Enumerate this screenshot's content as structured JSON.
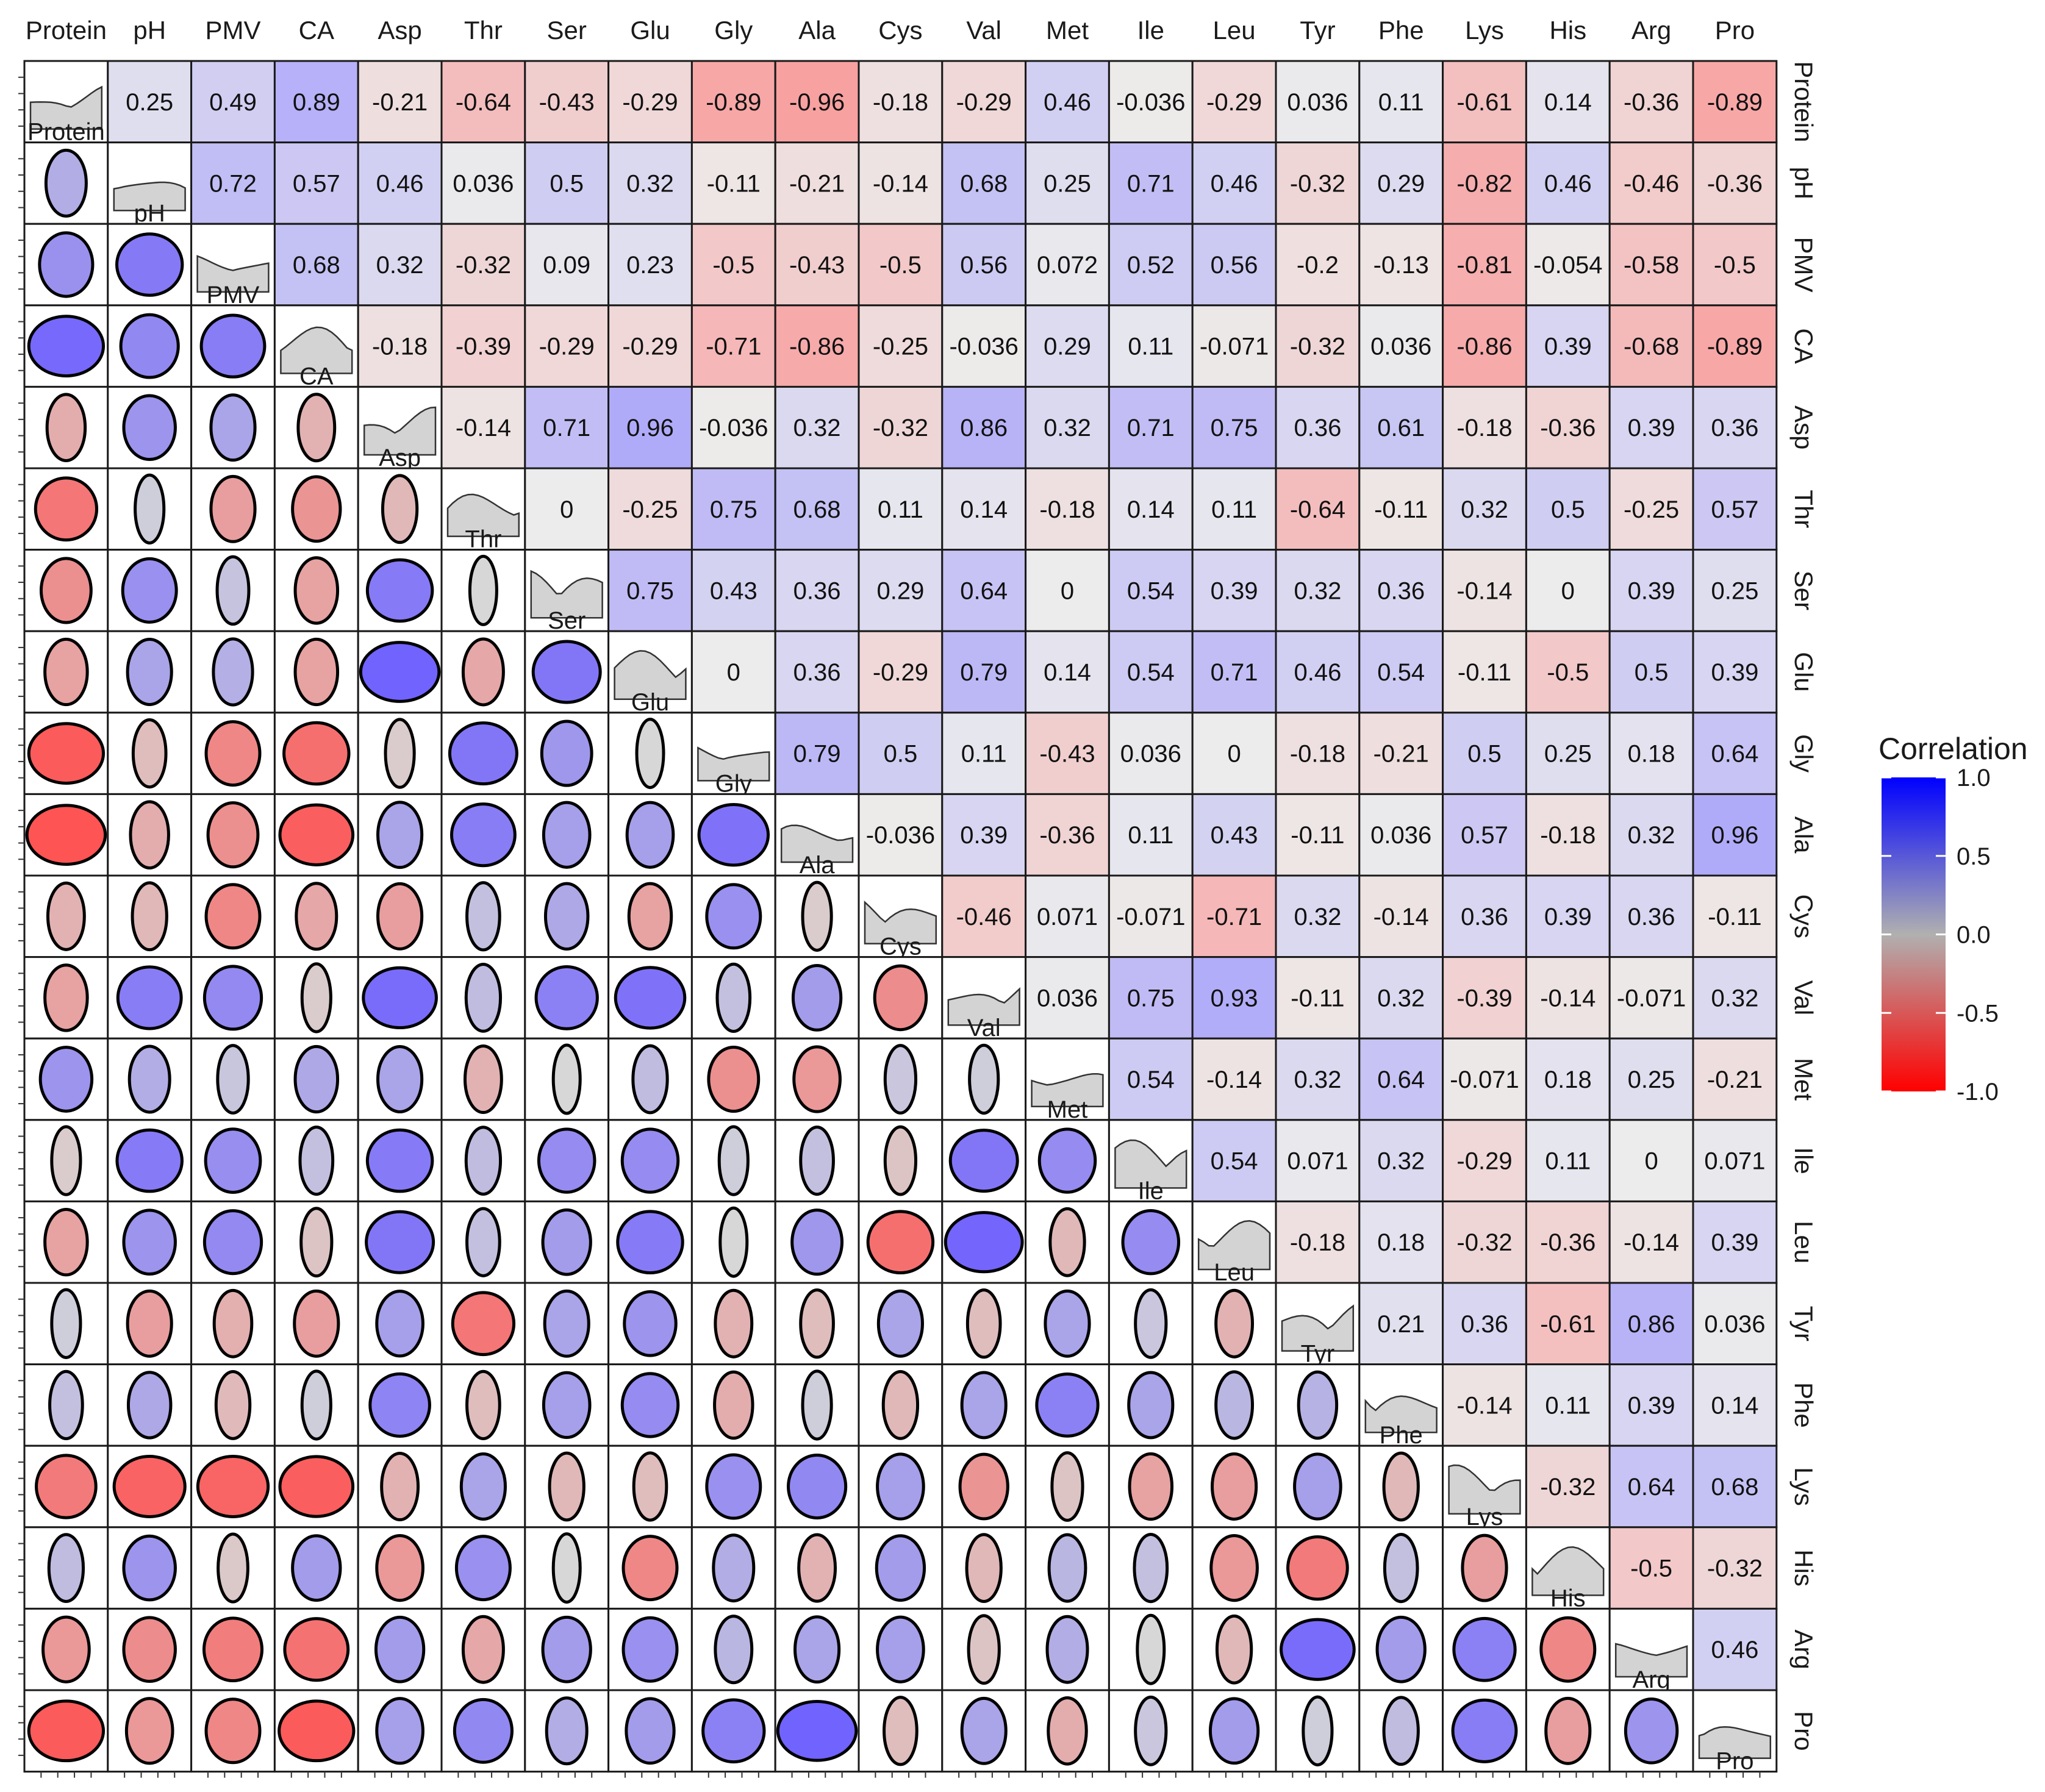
{
  "chart_data": {
    "type": "heatmap",
    "variables": [
      "Protein",
      "pH",
      "PMV",
      "CA",
      "Asp",
      "Thr",
      "Ser",
      "Glu",
      "Gly",
      "Ala",
      "Cys",
      "Val",
      "Met",
      "Ile",
      "Leu",
      "Tyr",
      "Phe",
      "Lys",
      "His",
      "Arg",
      "Pro"
    ],
    "upper_labels": [
      [
        "",
        "0.25",
        "0.49",
        "0.89",
        "-0.21",
        "-0.64",
        "-0.43",
        "-0.29",
        "-0.89",
        "-0.96",
        "-0.18",
        "-0.29",
        "0.46",
        "-0.036",
        "-0.29",
        "0.036",
        "0.11",
        "-0.61",
        "0.14",
        "-0.36",
        "-0.89"
      ],
      [
        "",
        "",
        "0.72",
        "0.57",
        "0.46",
        "0.036",
        "0.5",
        "0.32",
        "-0.11",
        "-0.21",
        "-0.14",
        "0.68",
        "0.25",
        "0.71",
        "0.46",
        "-0.32",
        "0.29",
        "-0.82",
        "0.46",
        "-0.46",
        "-0.36"
      ],
      [
        "",
        "",
        "",
        "0.68",
        "0.32",
        "-0.32",
        "0.09",
        "0.23",
        "-0.5",
        "-0.43",
        "-0.5",
        "0.56",
        "0.072",
        "0.52",
        "0.56",
        "-0.2",
        "-0.13",
        "-0.81",
        "-0.054",
        "-0.58",
        "-0.5"
      ],
      [
        "",
        "",
        "",
        "",
        "-0.18",
        "-0.39",
        "-0.29",
        "-0.29",
        "-0.71",
        "-0.86",
        "-0.25",
        "-0.036",
        "0.29",
        "0.11",
        "-0.071",
        "-0.32",
        "0.036",
        "-0.86",
        "0.39",
        "-0.68",
        "-0.89"
      ],
      [
        "",
        "",
        "",
        "",
        "",
        "-0.14",
        "0.71",
        "0.96",
        "-0.036",
        "0.32",
        "-0.32",
        "0.86",
        "0.32",
        "0.71",
        "0.75",
        "0.36",
        "0.61",
        "-0.18",
        "-0.36",
        "0.39",
        "0.36"
      ],
      [
        "",
        "",
        "",
        "",
        "",
        "",
        "0",
        "-0.25",
        "0.75",
        "0.68",
        "0.11",
        "0.14",
        "-0.18",
        "0.14",
        "0.11",
        "-0.64",
        "-0.11",
        "0.32",
        "0.5",
        "-0.25",
        "0.57"
      ],
      [
        "",
        "",
        "",
        "",
        "",
        "",
        "",
        "0.75",
        "0.43",
        "0.36",
        "0.29",
        "0.64",
        "0",
        "0.54",
        "0.39",
        "0.32",
        "0.36",
        "-0.14",
        "0",
        "0.39",
        "0.25"
      ],
      [
        "",
        "",
        "",
        "",
        "",
        "",
        "",
        "",
        "0",
        "0.36",
        "-0.29",
        "0.79",
        "0.14",
        "0.54",
        "0.71",
        "0.46",
        "0.54",
        "-0.11",
        "-0.5",
        "0.5",
        "0.39"
      ],
      [
        "",
        "",
        "",
        "",
        "",
        "",
        "",
        "",
        "",
        "0.79",
        "0.5",
        "0.11",
        "-0.43",
        "0.036",
        "0",
        "-0.18",
        "-0.21",
        "0.5",
        "0.25",
        "0.18",
        "0.64"
      ],
      [
        "",
        "",
        "",
        "",
        "",
        "",
        "",
        "",
        "",
        "",
        "-0.036",
        "0.39",
        "-0.36",
        "0.11",
        "0.43",
        "-0.11",
        "0.036",
        "0.57",
        "-0.18",
        "0.32",
        "0.96"
      ],
      [
        "",
        "",
        "",
        "",
        "",
        "",
        "",
        "",
        "",
        "",
        "",
        "-0.46",
        "0.071",
        "-0.071",
        "-0.71",
        "0.32",
        "-0.14",
        "0.36",
        "0.39",
        "0.36",
        "-0.11"
      ],
      [
        "",
        "",
        "",
        "",
        "",
        "",
        "",
        "",
        "",
        "",
        "",
        "",
        "0.036",
        "0.75",
        "0.93",
        "-0.11",
        "0.32",
        "-0.39",
        "-0.14",
        "-0.071",
        "0.32"
      ],
      [
        "",
        "",
        "",
        "",
        "",
        "",
        "",
        "",
        "",
        "",
        "",
        "",
        "",
        "0.54",
        "-0.14",
        "0.32",
        "0.64",
        "-0.071",
        "0.18",
        "0.25",
        "-0.21"
      ],
      [
        "",
        "",
        "",
        "",
        "",
        "",
        "",
        "",
        "",
        "",
        "",
        "",
        "",
        "",
        "0.54",
        "0.071",
        "0.32",
        "-0.29",
        "0.11",
        "0",
        "0.071"
      ],
      [
        "",
        "",
        "",
        "",
        "",
        "",
        "",
        "",
        "",
        "",
        "",
        "",
        "",
        "",
        "",
        "-0.18",
        "0.18",
        "-0.32",
        "-0.36",
        "-0.14",
        "0.39"
      ],
      [
        "",
        "",
        "",
        "",
        "",
        "",
        "",
        "",
        "",
        "",
        "",
        "",
        "",
        "",
        "",
        "",
        "0.21",
        "0.36",
        "-0.61",
        "0.86",
        "0.036"
      ],
      [
        "",
        "",
        "",
        "",
        "",
        "",
        "",
        "",
        "",
        "",
        "",
        "",
        "",
        "",
        "",
        "",
        "",
        "-0.14",
        "0.11",
        "0.39",
        "0.14"
      ],
      [
        "",
        "",
        "",
        "",
        "",
        "",
        "",
        "",
        "",
        "",
        "",
        "",
        "",
        "",
        "",
        "",
        "",
        "",
        "-0.32",
        "0.64",
        "0.68"
      ],
      [
        "",
        "",
        "",
        "",
        "",
        "",
        "",
        "",
        "",
        "",
        "",
        "",
        "",
        "",
        "",
        "",
        "",
        "",
        "",
        "-0.5",
        "-0.32"
      ],
      [
        "",
        "",
        "",
        "",
        "",
        "",
        "",
        "",
        "",
        "",
        "",
        "",
        "",
        "",
        "",
        "",
        "",
        "",
        "",
        "",
        "0.46"
      ],
      [
        "",
        "",
        "",
        "",
        "",
        "",
        "",
        "",
        "",
        "",
        "",
        "",
        "",
        "",
        "",
        "",
        "",
        "",
        "",
        "",
        ""
      ]
    ],
    "lower_ellipse_values": [
      [],
      [
        0.25
      ],
      [
        0.49,
        0.72
      ],
      [
        0.89,
        0.57,
        0.68
      ],
      [
        -0.21,
        0.46,
        0.32,
        -0.18
      ],
      [
        -0.64,
        0.036,
        -0.32,
        -0.39,
        -0.14
      ],
      [
        -0.43,
        0.5,
        0.09,
        -0.29,
        0.71,
        0.0
      ],
      [
        -0.29,
        0.32,
        0.23,
        -0.29,
        0.96,
        -0.25,
        0.75
      ],
      [
        -0.89,
        -0.11,
        -0.5,
        -0.71,
        -0.036,
        0.75,
        0.43,
        0.0
      ],
      [
        -0.96,
        -0.21,
        -0.43,
        -0.86,
        0.32,
        0.68,
        0.36,
        0.36,
        0.79
      ],
      [
        -0.18,
        -0.14,
        -0.5,
        -0.25,
        -0.32,
        0.11,
        0.29,
        -0.29,
        0.5,
        -0.036
      ],
      [
        -0.29,
        0.68,
        0.56,
        -0.036,
        0.86,
        0.14,
        0.64,
        0.79,
        0.11,
        0.39,
        -0.46
      ],
      [
        0.46,
        0.25,
        0.072,
        0.29,
        0.32,
        -0.18,
        0.0,
        0.14,
        -0.43,
        -0.36,
        0.071,
        0.036
      ],
      [
        -0.036,
        0.71,
        0.52,
        0.11,
        0.71,
        0.14,
        0.54,
        0.54,
        0.036,
        0.11,
        -0.071,
        0.75,
        0.54
      ],
      [
        -0.29,
        0.46,
        0.56,
        -0.071,
        0.75,
        0.11,
        0.39,
        0.71,
        0.0,
        0.43,
        -0.71,
        0.93,
        -0.14,
        0.54
      ],
      [
        0.036,
        -0.32,
        -0.2,
        -0.32,
        0.36,
        -0.64,
        0.32,
        0.46,
        -0.18,
        -0.11,
        0.32,
        -0.11,
        0.32,
        0.071,
        -0.18
      ],
      [
        0.11,
        0.29,
        -0.13,
        0.036,
        0.61,
        -0.11,
        0.36,
        0.54,
        -0.21,
        0.036,
        -0.14,
        0.32,
        0.64,
        0.32,
        0.18,
        0.21
      ],
      [
        -0.61,
        -0.82,
        -0.81,
        -0.86,
        -0.18,
        0.32,
        -0.14,
        -0.11,
        0.5,
        0.57,
        0.36,
        -0.39,
        -0.071,
        -0.29,
        -0.32,
        0.36,
        -0.14
      ],
      [
        0.14,
        0.46,
        -0.054,
        0.39,
        -0.36,
        0.5,
        0.0,
        -0.5,
        0.25,
        -0.18,
        0.39,
        -0.14,
        0.18,
        0.11,
        -0.36,
        -0.61,
        0.11,
        -0.32
      ],
      [
        -0.36,
        -0.46,
        -0.58,
        -0.68,
        0.39,
        -0.25,
        0.39,
        0.5,
        0.18,
        0.32,
        0.36,
        -0.071,
        0.25,
        0.0,
        -0.14,
        0.86,
        0.39,
        0.64,
        -0.5
      ],
      [
        -0.89,
        -0.36,
        -0.5,
        -0.89,
        0.36,
        0.57,
        0.25,
        0.39,
        0.64,
        0.96,
        -0.11,
        0.32,
        -0.21,
        0.071,
        0.39,
        0.036,
        0.14,
        0.68,
        -0.32,
        0.46
      ]
    ],
    "colorbar": {
      "title": "Correlation",
      "ticks": [
        "1.0",
        "0.5",
        "0.0",
        "-0.5",
        "-1.0"
      ],
      "range": [
        -1.0,
        1.0
      ],
      "colors": {
        "high": "#0000ff",
        "mid": "#b0b0b0",
        "low": "#ff0000"
      }
    },
    "diagonal": "density",
    "legend_placement": "right"
  }
}
